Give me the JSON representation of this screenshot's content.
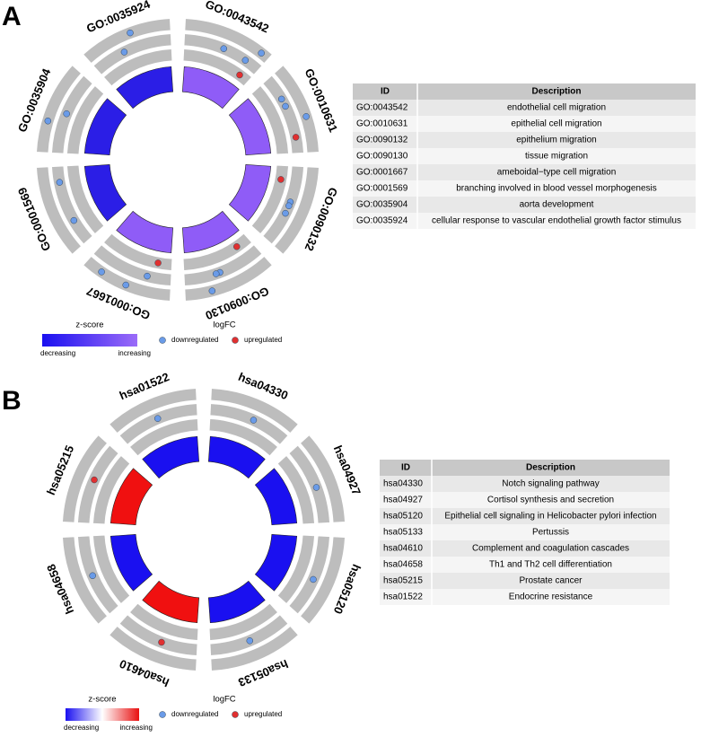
{
  "panels": [
    {
      "letter": "A",
      "segments": [
        {
          "id": "GO:0043542",
          "color": "#8f5cf7"
        },
        {
          "id": "GO:0010631",
          "color": "#8f5cf7"
        },
        {
          "id": "GO:0090132",
          "color": "#8f5cf7"
        },
        {
          "id": "GO:0090130",
          "color": "#8f5cf7"
        },
        {
          "id": "GO:0001667",
          "color": "#8f5cf7"
        },
        {
          "id": "GO:0001569",
          "color": "#2b1ee6"
        },
        {
          "id": "GO:0035904",
          "color": "#2b1ee6"
        },
        {
          "id": "GO:0035924",
          "color": "#2b1ee6"
        }
      ],
      "legend": {
        "zscore_title": "z-score",
        "low": "decreasing",
        "high": "increasing",
        "colors": [
          "#1a10f0",
          "#9b6cf8"
        ],
        "logfc_title": "logFC",
        "down": "downregulated",
        "up": "upregulated",
        "down_color": "#6a9be8",
        "up_color": "#e03030"
      },
      "table": {
        "header": [
          "ID",
          "Description"
        ],
        "rows": [
          [
            "GO:0043542",
            "endothelial cell migration"
          ],
          [
            "GO:0010631",
            "epithelial cell migration"
          ],
          [
            "GO:0090132",
            "epithelium migration"
          ],
          [
            "GO:0090130",
            "tissue migration"
          ],
          [
            "GO:0001667",
            "ameboidal−type cell migration"
          ],
          [
            "GO:0001569",
            "branching involved in blood vessel morphogenesis"
          ],
          [
            "GO:0035904",
            "aorta development"
          ],
          [
            "GO:0035924",
            "cellular response to vascular endothelial growth factor stimulus"
          ]
        ]
      }
    },
    {
      "letter": "B",
      "segments": [
        {
          "id": "hsa04330",
          "color": "#1a10f0"
        },
        {
          "id": "hsa04927",
          "color": "#1a10f0"
        },
        {
          "id": "hsa05120",
          "color": "#1a10f0"
        },
        {
          "id": "hsa05133",
          "color": "#1a10f0"
        },
        {
          "id": "hsa04610",
          "color": "#f01010"
        },
        {
          "id": "hsa04658",
          "color": "#1a10f0"
        },
        {
          "id": "hsa05215",
          "color": "#f01010"
        },
        {
          "id": "hsa01522",
          "color": "#1a10f0"
        }
      ],
      "legend": {
        "zscore_title": "z-score",
        "low": "decreasing",
        "high": "increasing",
        "colors": [
          "#1a10f0",
          "#ffffff",
          "#e81010"
        ],
        "logfc_title": "logFC",
        "down": "downregulated",
        "up": "upregulated",
        "down_color": "#6a9be8",
        "up_color": "#e03030"
      },
      "table": {
        "header": [
          "ID",
          "Description"
        ],
        "rows": [
          [
            "hsa04330",
            "Notch signaling pathway"
          ],
          [
            "hsa04927",
            "Cortisol synthesis and secretion"
          ],
          [
            "hsa05120",
            "Epithelial cell signaling in Helicobacter pylori infection"
          ],
          [
            "hsa05133",
            "Pertussis"
          ],
          [
            "hsa04610",
            "Complement and coagulation cascades"
          ],
          [
            "hsa04658",
            "Th1 and Th2 cell differentiation"
          ],
          [
            "hsa05215",
            "Prostate cancer"
          ],
          [
            "hsa01522",
            "Endocrine resistance"
          ]
        ]
      }
    }
  ]
}
